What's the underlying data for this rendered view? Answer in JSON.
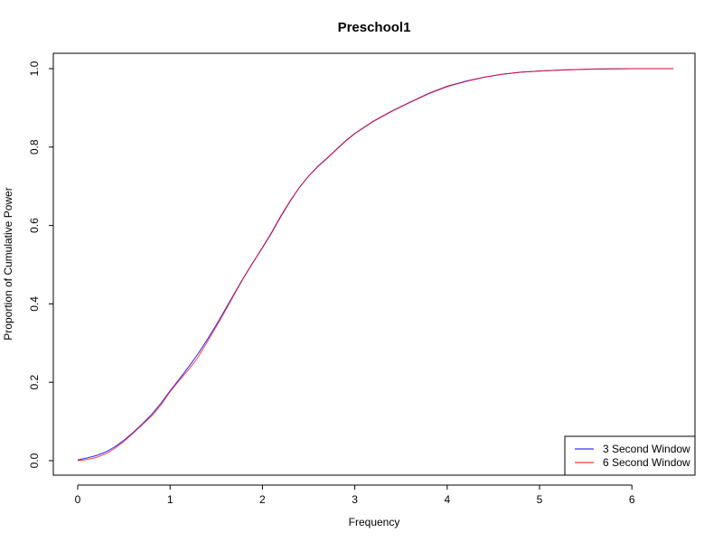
{
  "chart_data": {
    "type": "line",
    "title": "Preschool1",
    "xlabel": "Frequency",
    "ylabel": "Proportion of Cumulative Power",
    "xlim": [
      0,
      6.5
    ],
    "ylim": [
      0,
      1
    ],
    "x_ticks": [
      "0",
      "1",
      "2",
      "3",
      "4",
      "5",
      "6"
    ],
    "y_ticks": [
      "0.0",
      "0.2",
      "0.4",
      "0.6",
      "0.8",
      "1.0"
    ],
    "grid": false,
    "legend_position": "bottom-right",
    "series": [
      {
        "name": "3 Second Window",
        "color": "#0000ff",
        "x": [
          0,
          0.1,
          0.2,
          0.3,
          0.4,
          0.5,
          0.6,
          0.7,
          0.8,
          0.9,
          1.0,
          1.1,
          1.2,
          1.3,
          1.4,
          1.5,
          1.6,
          1.7,
          1.8,
          1.9,
          2.0,
          2.1,
          2.2,
          2.3,
          2.4,
          2.5,
          2.6,
          2.7,
          2.8,
          2.9,
          3.0,
          3.2,
          3.4,
          3.6,
          3.8,
          4.0,
          4.2,
          4.4,
          4.6,
          4.8,
          5.0,
          5.3,
          5.6,
          6.0,
          6.45
        ],
        "y": [
          0.002,
          0.007,
          0.013,
          0.022,
          0.035,
          0.052,
          0.072,
          0.094,
          0.118,
          0.146,
          0.178,
          0.208,
          0.239,
          0.272,
          0.308,
          0.346,
          0.387,
          0.428,
          0.469,
          0.507,
          0.543,
          0.581,
          0.623,
          0.662,
          0.697,
          0.726,
          0.751,
          0.772,
          0.794,
          0.816,
          0.835,
          0.866,
          0.892,
          0.915,
          0.937,
          0.955,
          0.968,
          0.978,
          0.986,
          0.991,
          0.994,
          0.997,
          0.999,
          1.0,
          1.0
        ]
      },
      {
        "name": "6 Second Window",
        "color": "#ff0000",
        "x": [
          0,
          0.1,
          0.2,
          0.3,
          0.4,
          0.5,
          0.6,
          0.7,
          0.8,
          0.9,
          1.0,
          1.1,
          1.2,
          1.3,
          1.4,
          1.5,
          1.6,
          1.7,
          1.8,
          1.9,
          2.0,
          2.1,
          2.2,
          2.3,
          2.4,
          2.5,
          2.6,
          2.7,
          2.8,
          2.9,
          3.0,
          3.2,
          3.4,
          3.6,
          3.8,
          4.0,
          4.2,
          4.4,
          4.6,
          4.8,
          5.0,
          5.3,
          5.6,
          6.0,
          6.45
        ],
        "y": [
          0.0,
          0.003,
          0.008,
          0.017,
          0.031,
          0.049,
          0.07,
          0.092,
          0.114,
          0.142,
          0.176,
          0.205,
          0.232,
          0.263,
          0.302,
          0.342,
          0.383,
          0.426,
          0.468,
          0.506,
          0.544,
          0.583,
          0.625,
          0.663,
          0.697,
          0.726,
          0.75,
          0.771,
          0.793,
          0.815,
          0.834,
          0.865,
          0.891,
          0.914,
          0.936,
          0.954,
          0.967,
          0.978,
          0.986,
          0.991,
          0.994,
          0.997,
          0.999,
          1.0,
          1.0
        ]
      }
    ]
  }
}
